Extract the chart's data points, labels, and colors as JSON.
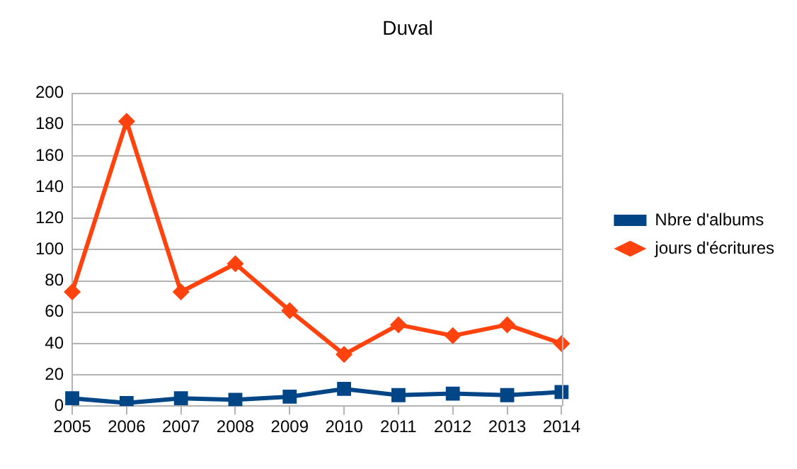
{
  "chart_data": {
    "type": "line",
    "title": "Duval",
    "categories": [
      "2005",
      "2006",
      "2007",
      "2008",
      "2009",
      "2010",
      "2011",
      "2012",
      "2013",
      "2014"
    ],
    "series": [
      {
        "name": "Nbre d'albums",
        "color": "#004586",
        "marker": "square",
        "values": [
          5,
          2,
          5,
          4,
          6,
          11,
          7,
          8,
          7,
          9
        ]
      },
      {
        "name": "jours d'écritures",
        "color": "#ff420e",
        "marker": "diamond",
        "values": [
          73,
          182,
          73,
          91,
          61,
          33,
          52,
          45,
          52,
          40
        ]
      }
    ],
    "ylim": [
      0,
      200
    ],
    "yticks": [
      0,
      20,
      40,
      60,
      80,
      100,
      120,
      140,
      160,
      180,
      200
    ],
    "grid": "y",
    "legend": "right"
  }
}
